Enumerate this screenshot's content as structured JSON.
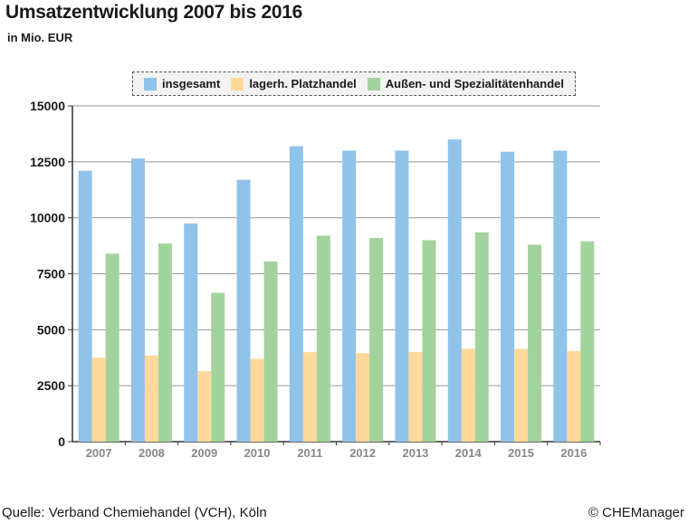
{
  "title": "Umsatzentwicklung 2007 bis 2016",
  "subtitle": "in Mio. EUR",
  "footer": {
    "source": "Quelle: Verband Chemiehandel (VCH), Köln",
    "copyright": "© CHEManager"
  },
  "colors": {
    "insgesamt": "#8fc3ea",
    "lagerh": "#ffd99a",
    "aussen": "#a3d39c",
    "grid": "#999999",
    "axis": "#333333",
    "tick_label_x": "#888888"
  },
  "chart_data": {
    "type": "bar",
    "title": "Umsatzentwicklung 2007 bis 2016",
    "subtitle": "in Mio. EUR",
    "categories": [
      "2007",
      "2008",
      "2009",
      "2010",
      "2011",
      "2012",
      "2013",
      "2014",
      "2015",
      "2016"
    ],
    "series": [
      {
        "name": "insgesamt",
        "values": [
          12100,
          12650,
          9750,
          11700,
          13200,
          13000,
          13000,
          13500,
          12950,
          13000
        ]
      },
      {
        "name": "lagerh. Platzhandel",
        "values": [
          3750,
          3850,
          3150,
          3700,
          4000,
          3950,
          4000,
          4150,
          4150,
          4050
        ]
      },
      {
        "name": "Außen- und Spezialitätenhandel",
        "values": [
          8400,
          8850,
          6650,
          8050,
          9200,
          9100,
          9000,
          9350,
          8800,
          8950
        ]
      }
    ],
    "ylim": [
      0,
      15000
    ],
    "yticks": [
      "0",
      "2500",
      "5000",
      "7500",
      "10000",
      "12500",
      "15000"
    ],
    "grid": true,
    "legend_position": "top"
  }
}
